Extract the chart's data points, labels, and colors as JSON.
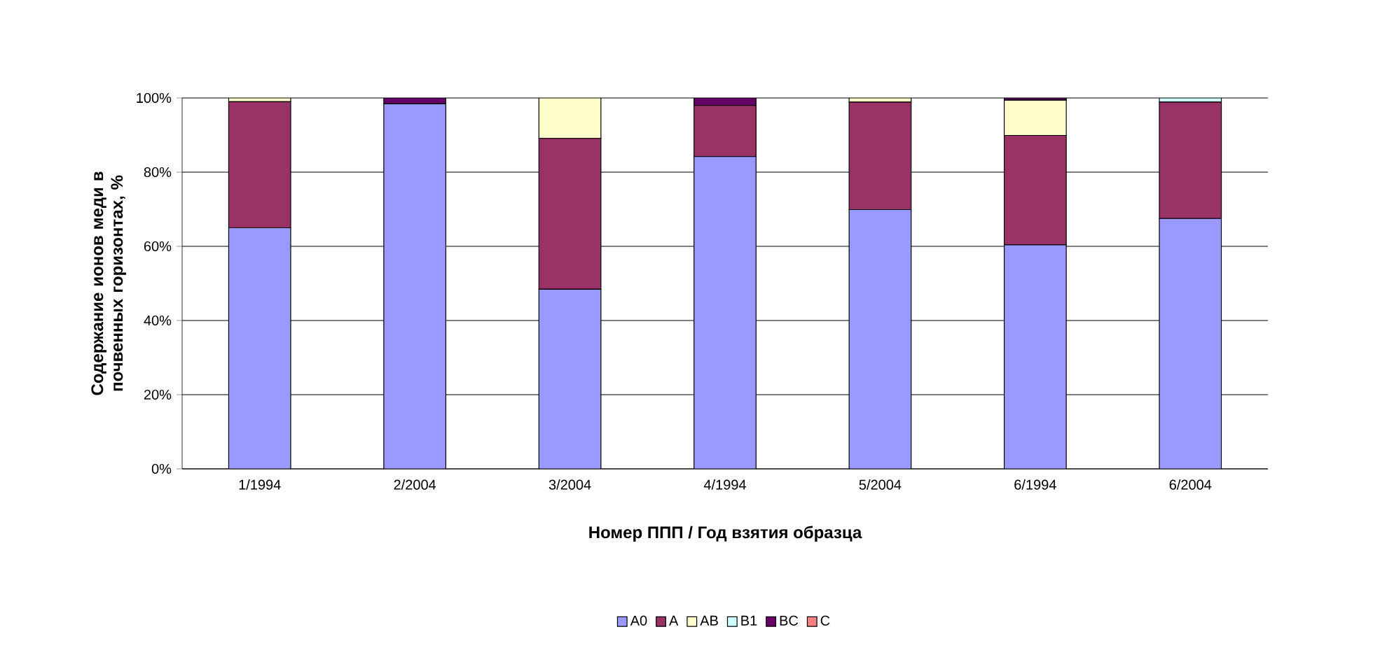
{
  "chart_data": {
    "type": "bar",
    "stacked": true,
    "xlabel": "Номер ППП / Год взятия образца",
    "ylabel": "Содержание ионов меди в почвенных горизонтах, %",
    "categories": [
      "1/1994",
      "2/2004",
      "3/2004",
      "4/1994",
      "5/2004",
      "6/1994",
      "6/2004"
    ],
    "series": [
      {
        "name": "A0",
        "color": "#9999ff",
        "values": [
          65,
          98.4,
          48.4,
          84.2,
          69.9,
          60.4,
          67.5
        ]
      },
      {
        "name": "A",
        "color": "#993366",
        "values": [
          34,
          0,
          40.7,
          13.8,
          29,
          29.5,
          31.4
        ]
      },
      {
        "name": "AB",
        "color": "#ffffcc",
        "values": [
          1,
          0,
          10.9,
          0,
          1.1,
          9.5,
          0
        ]
      },
      {
        "name": "B1",
        "color": "#ccffff",
        "values": [
          0,
          0,
          0,
          0,
          0,
          0,
          1.1
        ]
      },
      {
        "name": "BC",
        "color": "#660066",
        "values": [
          0,
          1.6,
          0,
          2,
          0,
          0.6,
          0
        ]
      },
      {
        "name": "C",
        "color": "#ff8080",
        "values": [
          0,
          0,
          0,
          0,
          0,
          0,
          0
        ]
      }
    ],
    "ylim": [
      0,
      100
    ],
    "yticks": [
      {
        "value": 0,
        "label": "0%"
      },
      {
        "value": 20,
        "label": "20%"
      },
      {
        "value": 40,
        "label": "40%"
      },
      {
        "value": 60,
        "label": "60%"
      },
      {
        "value": 80,
        "label": "80%"
      },
      {
        "value": 100,
        "label": "100%"
      }
    ],
    "grid": "y",
    "legend": "bottom"
  }
}
